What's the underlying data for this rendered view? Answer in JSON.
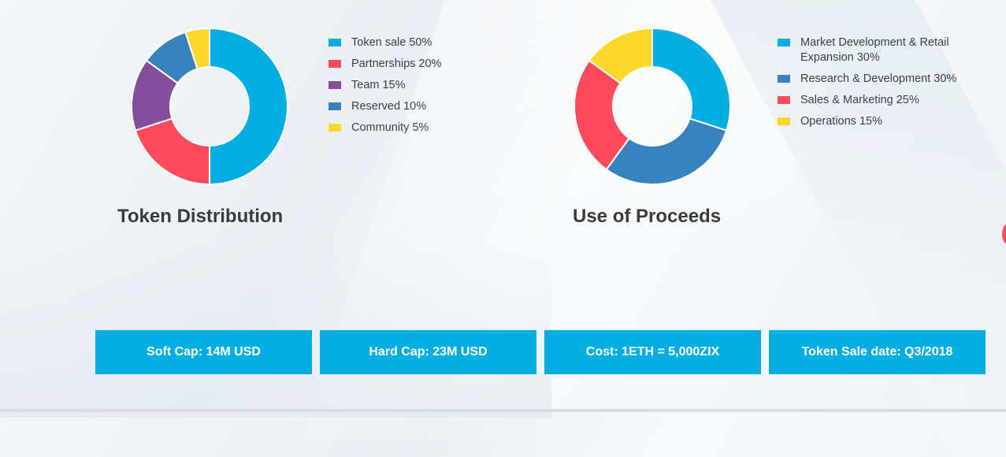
{
  "colors": {
    "blue": "#05aee2",
    "red": "#ff4b5c",
    "purple": "#844e9c",
    "steel_blue": "#3882be",
    "yellow": "#ffd62a",
    "title": "#3b3b3b",
    "text": "#3b3f47"
  },
  "chart_data": [
    {
      "type": "pie",
      "variant": "donut",
      "title": "Token Distribution",
      "legend_position": "right",
      "slices": [
        {
          "label": "Token sale 50%",
          "value": 50,
          "color": "#05aee2"
        },
        {
          "label": "Partnerships 20%",
          "value": 20,
          "color": "#ff4b5c"
        },
        {
          "label": "Team 15%",
          "value": 15,
          "color": "#844e9c"
        },
        {
          "label": "Reserved 10%",
          "value": 10,
          "color": "#3882be"
        },
        {
          "label": "Community 5%",
          "value": 5,
          "color": "#ffd62a"
        }
      ]
    },
    {
      "type": "pie",
      "variant": "donut",
      "title": "Use of Proceeds",
      "legend_position": "right",
      "slices": [
        {
          "label": "Market Development & Retail Expansion 30%",
          "value": 30,
          "color": "#05aee2"
        },
        {
          "label": "Research & Development 30%",
          "value": 30,
          "color": "#3882be"
        },
        {
          "label": "Sales & Marketing 25%",
          "value": 25,
          "color": "#ff4b5c"
        },
        {
          "label": "Operations 15%",
          "value": 15,
          "color": "#ffd62a"
        }
      ]
    }
  ],
  "info_boxes": [
    {
      "label": "Soft Cap: 14M USD"
    },
    {
      "label": "Hard Cap: 23M USD"
    },
    {
      "label": "Cost: 1ETH = 5,000ZIX"
    },
    {
      "label": "Token Sale date: Q3/2018"
    }
  ]
}
